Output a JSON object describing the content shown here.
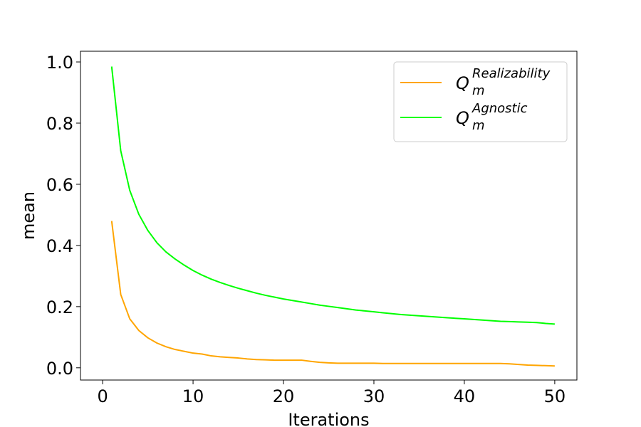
{
  "chart_data": {
    "type": "line",
    "xlabel": "Iterations",
    "ylabel": "mean",
    "xlim": [
      -2.45,
      52.45
    ],
    "ylim": [
      -0.04,
      1.035
    ],
    "xticks": [
      0,
      10,
      20,
      30,
      40,
      50
    ],
    "xtick_labels": [
      "0",
      "10",
      "20",
      "30",
      "40",
      "50"
    ],
    "yticks": [
      0.0,
      0.2,
      0.4,
      0.6,
      0.8,
      1.0
    ],
    "ytick_labels": [
      "0.0",
      "0.2",
      "0.4",
      "0.6",
      "0.8",
      "1.0"
    ],
    "grid": false,
    "legend_position": "top-right",
    "x": [
      1,
      2,
      3,
      4,
      5,
      6,
      7,
      8,
      9,
      10,
      11,
      12,
      13,
      14,
      15,
      16,
      17,
      18,
      19,
      20,
      21,
      22,
      23,
      24,
      25,
      26,
      27,
      28,
      29,
      30,
      31,
      32,
      33,
      34,
      35,
      36,
      37,
      38,
      39,
      40,
      41,
      42,
      43,
      44,
      45,
      46,
      47,
      48,
      49,
      50
    ],
    "series": [
      {
        "name_main": "Q",
        "name_sub": "m",
        "name_sup": "Realizability",
        "color": "#FFA500",
        "values": [
          0.48,
          0.24,
          0.16,
          0.122,
          0.098,
          0.081,
          0.069,
          0.06,
          0.054,
          0.048,
          0.045,
          0.039,
          0.036,
          0.034,
          0.032,
          0.029,
          0.027,
          0.026,
          0.025,
          0.025,
          0.025,
          0.025,
          0.021,
          0.018,
          0.016,
          0.015,
          0.015,
          0.015,
          0.015,
          0.015,
          0.014,
          0.014,
          0.014,
          0.014,
          0.014,
          0.014,
          0.014,
          0.014,
          0.014,
          0.014,
          0.014,
          0.014,
          0.014,
          0.014,
          0.013,
          0.011,
          0.009,
          0.008,
          0.007,
          0.006
        ]
      },
      {
        "name_main": "Q",
        "name_sub": "m",
        "name_sup": "Agnostic",
        "color": "#00FF00",
        "values": [
          0.985,
          0.71,
          0.58,
          0.502,
          0.449,
          0.409,
          0.379,
          0.356,
          0.336,
          0.318,
          0.303,
          0.29,
          0.279,
          0.269,
          0.26,
          0.252,
          0.244,
          0.237,
          0.231,
          0.225,
          0.22,
          0.215,
          0.21,
          0.205,
          0.201,
          0.197,
          0.193,
          0.189,
          0.186,
          0.183,
          0.18,
          0.177,
          0.174,
          0.172,
          0.17,
          0.168,
          0.166,
          0.164,
          0.162,
          0.16,
          0.158,
          0.156,
          0.154,
          0.152,
          0.151,
          0.15,
          0.149,
          0.148,
          0.145,
          0.143
        ]
      }
    ]
  }
}
